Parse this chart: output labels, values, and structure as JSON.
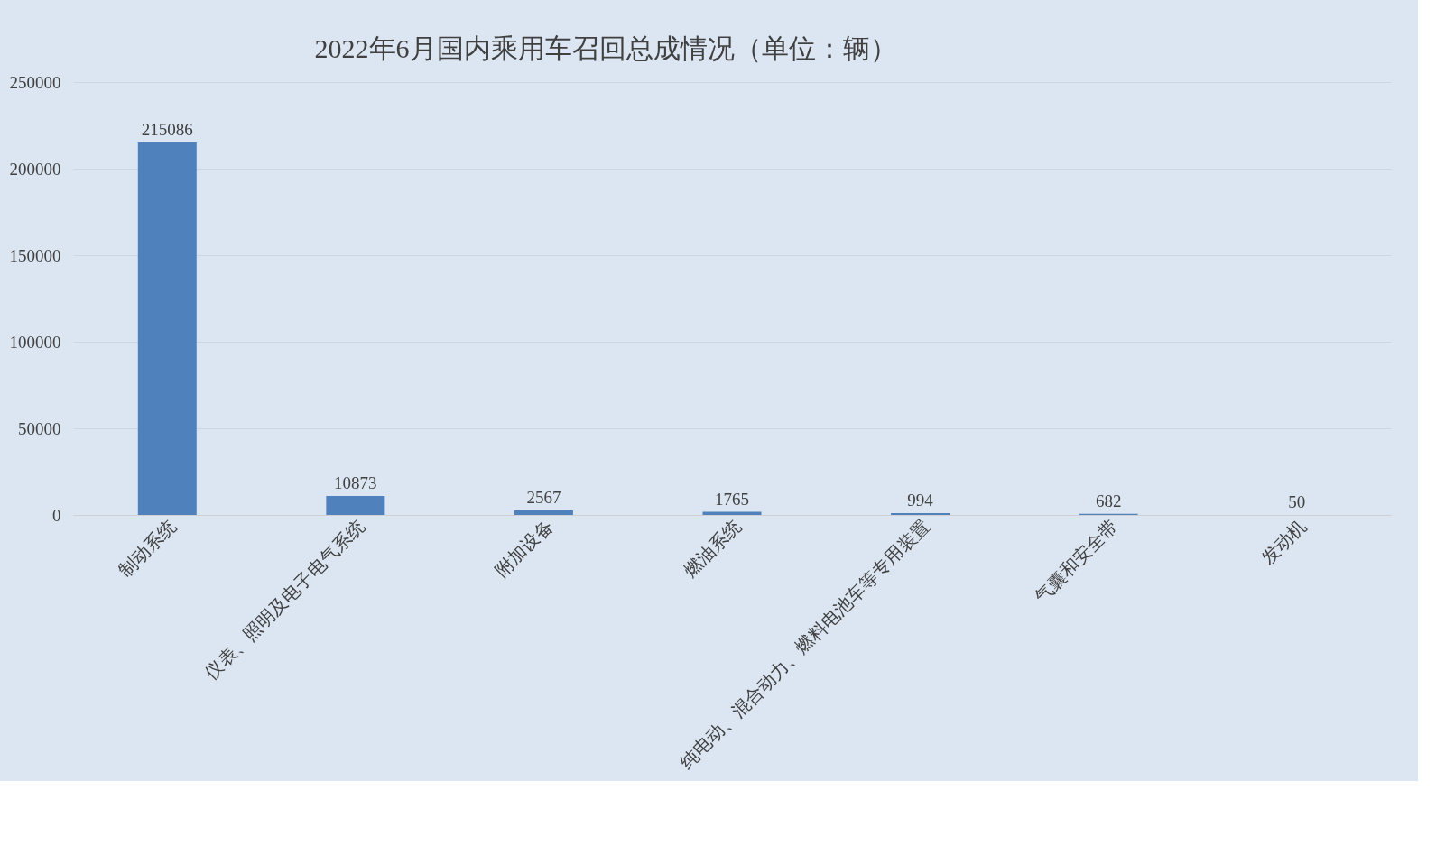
{
  "chart_data": {
    "type": "bar",
    "title": "2022年6月国内乘用车召回总成情况（单位：辆）",
    "categories": [
      "制动系统",
      "仪表、照明及电子电气系统",
      "附加设备",
      "燃油系统",
      "纯电动、混合动力、燃料电池车等专用装置",
      "气囊和安全带",
      "发动机"
    ],
    "values": [
      215086,
      10873,
      2567,
      1765,
      994,
      682,
      50
    ],
    "color": "#4f81bd",
    "ylim": [
      0,
      250000
    ],
    "yticks": [
      0,
      50000,
      100000,
      150000,
      200000,
      250000
    ],
    "grid": "y",
    "data_labels": true
  }
}
